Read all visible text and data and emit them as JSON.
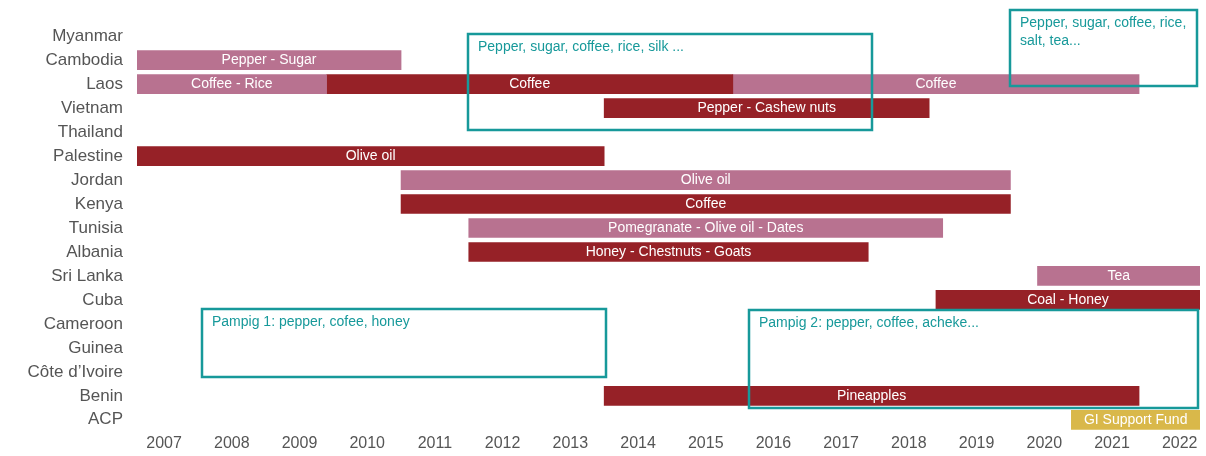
{
  "chart_data": {
    "type": "bar",
    "orientation": "horizontal",
    "categories": [
      "Myanmar",
      "Cambodia",
      "Laos",
      "Vietnam",
      "Thailand",
      "Palestine",
      "Jordan",
      "Kenya",
      "Tunisia",
      "Albania",
      "Sri Lanka",
      "Cuba",
      "Cameroon",
      "Guinea",
      "Côte d’Ivoire",
      "Benin",
      "ACP"
    ],
    "series": [
      {
        "base": [
          null,
          2006.6,
          2006.6,
          2013.5,
          null,
          2006.6,
          2010.5,
          2010.5,
          2011.5,
          2011.5,
          2019.9,
          2018.4,
          null,
          null,
          null,
          2013.5,
          2020.4
        ],
        "values": [
          null,
          3.9,
          2.8,
          4.8,
          null,
          6.9,
          9.0,
          9.0,
          7.0,
          5.9,
          2.4,
          3.9,
          null,
          null,
          null,
          7.9,
          1.9
        ],
        "colors": [
          "#b87290",
          "#b87290",
          "#b87290",
          "#962127",
          "#962127",
          "#962127",
          "#b87290",
          "#962127",
          "#b87290",
          "#962127",
          "#b87290",
          "#962127",
          "#962127",
          "#962127",
          "#962127",
          "#962127",
          "#d9b84a"
        ],
        "value_labels": [
          null,
          "Pepper - Sugar",
          "Coffee - Rice",
          "Pepper - Cashew nuts",
          null,
          "Olive oil",
          "Olive oil",
          "Coffee",
          "Pomegranate - Olive oil - Dates",
          "Honey - Chestnuts - Goats",
          "Tea",
          "Coal - Honey",
          null,
          null,
          null,
          "Pineapples",
          "GI Support Fund"
        ]
      },
      {
        "base": [
          null,
          null,
          2009.4,
          null,
          null,
          null,
          null,
          null,
          null,
          null,
          null,
          null,
          null,
          null,
          null,
          null,
          null
        ],
        "values": [
          null,
          null,
          6.0,
          null,
          null,
          null,
          null,
          null,
          null,
          null,
          null,
          null,
          null,
          null,
          null,
          null,
          null
        ],
        "color": "#962127",
        "value_labels": [
          null,
          null,
          "Coffee",
          null,
          null,
          null,
          null,
          null,
          null,
          null,
          null,
          null,
          null,
          null,
          null,
          null,
          null
        ]
      },
      {
        "base": [
          null,
          null,
          2015.4,
          null,
          null,
          null,
          null,
          null,
          null,
          null,
          null,
          null,
          null,
          null,
          null,
          null,
          null
        ],
        "values": [
          null,
          null,
          6.0,
          null,
          null,
          null,
          null,
          null,
          null,
          null,
          null,
          null,
          null,
          null,
          null,
          null,
          null
        ],
        "color": "#b87290",
        "value_labels": [
          null,
          null,
          "Coffee",
          null,
          null,
          null,
          null,
          null,
          null,
          null,
          null,
          null,
          null,
          null,
          null,
          null,
          null
        ]
      }
    ],
    "xlim": [
      2006.6,
      2022.3
    ],
    "xticks": [
      2007,
      2008,
      2009,
      2010,
      2011,
      2012,
      2013,
      2014,
      2015,
      2016,
      2017,
      2018,
      2019,
      2020,
      2021,
      2022
    ],
    "grid": false,
    "legend": false,
    "annotations": [
      "Pepper, sugar, coffee, rice, silk ...",
      "Pepper, sugar, coffee, rice, salt, tea...",
      "Pampig 1: pepper, cofee, honey",
      "Pampig 2: pepper, coffee, acheke..."
    ]
  }
}
